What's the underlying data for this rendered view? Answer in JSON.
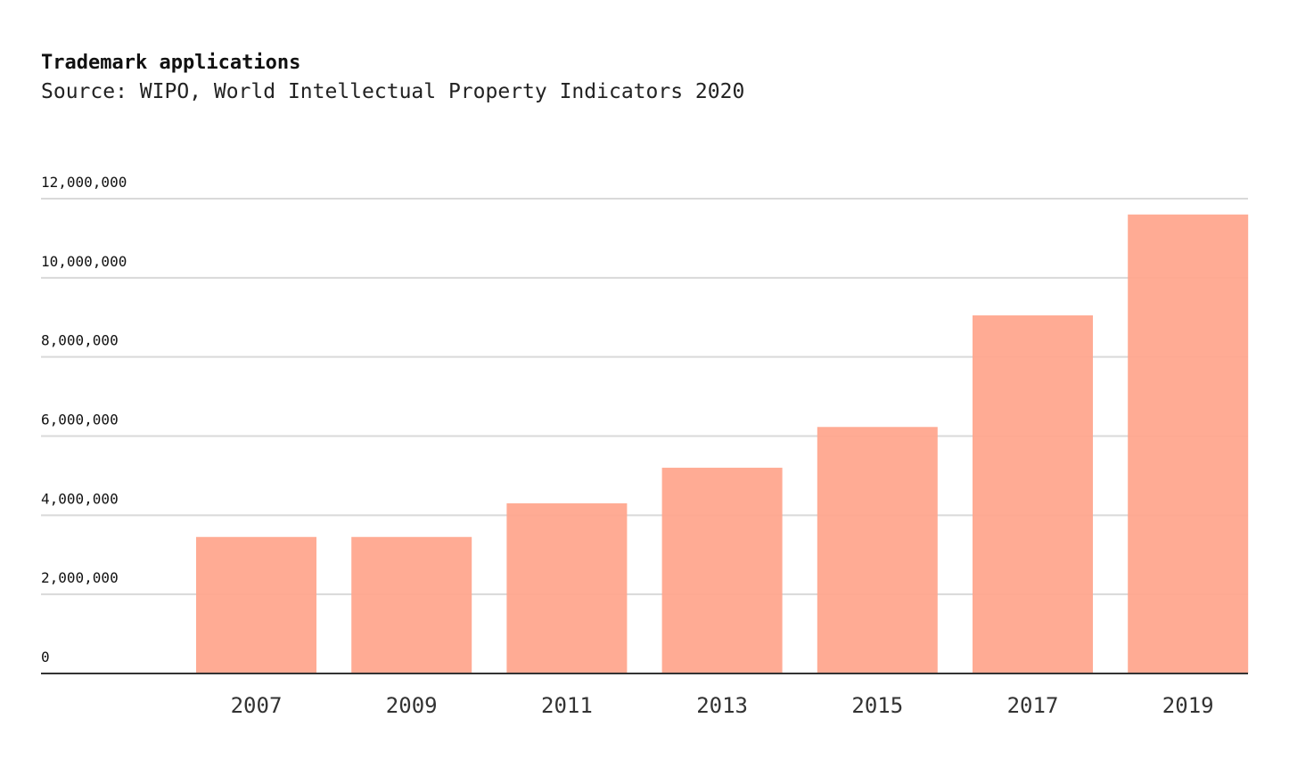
{
  "chart_data": {
    "type": "bar",
    "title": "Trademark applications",
    "subtitle": "Source: WIPO, World Intellectual Property Indicators 2020",
    "categories": [
      "2007",
      "2009",
      "2011",
      "2013",
      "2015",
      "2017",
      "2019"
    ],
    "values": [
      3450000,
      3450000,
      4300000,
      5200000,
      6230000,
      9050000,
      11600000
    ],
    "xlabel": "",
    "ylabel": "",
    "ylim": [
      0,
      12000000
    ],
    "yticks": [
      0,
      2000000,
      4000000,
      6000000,
      8000000,
      10000000,
      12000000
    ],
    "ytick_labels": [
      "0",
      "2,000,000",
      "4,000,000",
      "6,000,000",
      "8,000,000",
      "10,000,000",
      "12,000,000"
    ],
    "grid": true,
    "legend": "none",
    "bar_color": "#ffa68e",
    "grid_color": "#d9d9d9",
    "axis_color": "#333333"
  }
}
